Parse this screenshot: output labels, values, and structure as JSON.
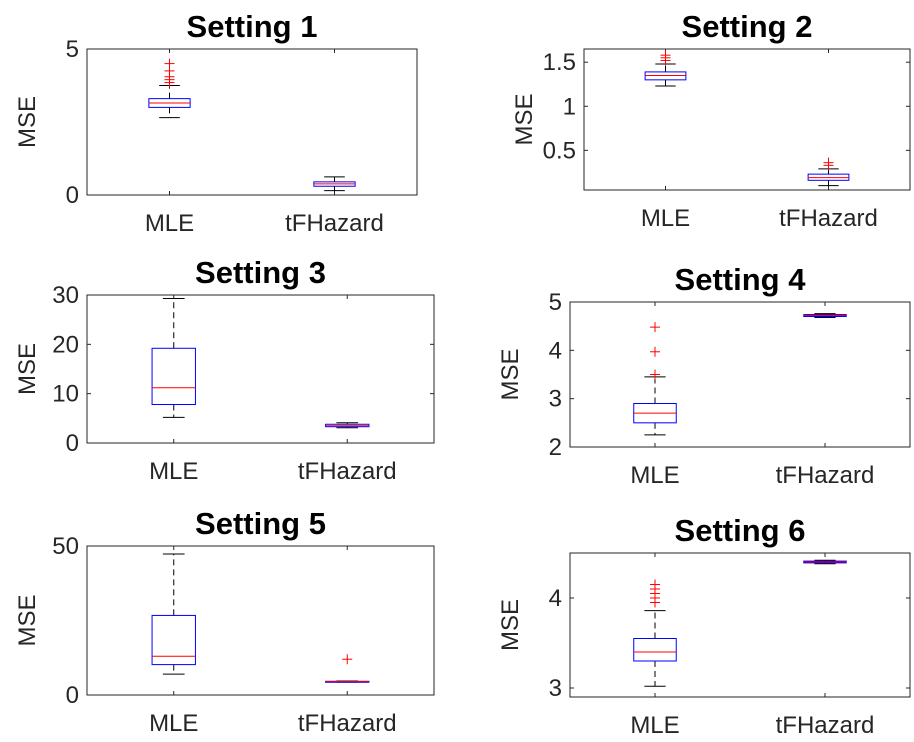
{
  "chart_data": [
    {
      "type": "box",
      "title": "Setting 1",
      "ylabel": "MSE",
      "categories": [
        "MLE",
        "tFHazard"
      ],
      "ylim": [
        0,
        5
      ],
      "yticks": [
        0,
        5
      ],
      "yticklabels": [
        "0",
        "5"
      ],
      "boxes": [
        {
          "category": "MLE",
          "whisker_low": 2.65,
          "q1": 3.0,
          "median": 3.15,
          "q3": 3.3,
          "whisker_high": 3.75,
          "outliers": [
            3.85,
            3.95,
            4.05,
            4.25,
            4.5
          ]
        },
        {
          "category": "tFHazard",
          "whisker_low": 0.15,
          "q1": 0.3,
          "median": 0.38,
          "q3": 0.45,
          "whisker_high": 0.62,
          "outliers": []
        }
      ]
    },
    {
      "type": "box",
      "title": "Setting 2",
      "ylabel": "MSE",
      "categories": [
        "MLE",
        "tFHazard"
      ],
      "ylim": [
        0.05,
        1.65
      ],
      "yticks": [
        0.5,
        1,
        1.5
      ],
      "yticklabels": [
        "0.5",
        "1",
        "1.5"
      ],
      "boxes": [
        {
          "category": "MLE",
          "whisker_low": 1.23,
          "q1": 1.3,
          "median": 1.35,
          "q3": 1.39,
          "whisker_high": 1.48,
          "outliers": [
            1.52,
            1.55,
            1.58
          ]
        },
        {
          "category": "tFHazard",
          "whisker_low": 0.1,
          "q1": 0.16,
          "median": 0.19,
          "q3": 0.23,
          "whisker_high": 0.29,
          "outliers": [
            0.33,
            0.36
          ]
        }
      ]
    },
    {
      "type": "box",
      "title": "Setting 3",
      "ylabel": "MSE",
      "categories": [
        "MLE",
        "tFHazard"
      ],
      "ylim": [
        0,
        30
      ],
      "yticks": [
        0,
        10,
        20,
        30
      ],
      "yticklabels": [
        "0",
        "10",
        "20",
        "30"
      ],
      "boxes": [
        {
          "category": "MLE",
          "whisker_low": 5.2,
          "q1": 7.8,
          "median": 11.2,
          "q3": 19.2,
          "whisker_high": 29.3,
          "outliers": []
        },
        {
          "category": "tFHazard",
          "whisker_low": 3.1,
          "q1": 3.3,
          "median": 3.5,
          "q3": 3.8,
          "whisker_high": 4.1,
          "outliers": []
        }
      ]
    },
    {
      "type": "box",
      "title": "Setting 4",
      "ylabel": "MSE",
      "categories": [
        "MLE",
        "tFHazard"
      ],
      "ylim": [
        2,
        5
      ],
      "yticks": [
        2,
        3,
        4,
        5
      ],
      "yticklabels": [
        "2",
        "3",
        "4",
        "5"
      ],
      "boxes": [
        {
          "category": "MLE",
          "whisker_low": 2.25,
          "q1": 2.5,
          "median": 2.7,
          "q3": 2.9,
          "whisker_high": 3.45,
          "outliers": [
            3.5,
            3.97,
            4.48
          ]
        },
        {
          "category": "tFHazard",
          "whisker_low": 4.68,
          "q1": 4.7,
          "median": 4.72,
          "q3": 4.74,
          "whisker_high": 4.76,
          "outliers": []
        }
      ]
    },
    {
      "type": "box",
      "title": "Setting 5",
      "ylabel": "MSE",
      "categories": [
        "MLE",
        "tFHazard"
      ],
      "ylim": [
        0,
        50
      ],
      "yticks": [
        0,
        50
      ],
      "yticklabels": [
        "0",
        "50"
      ],
      "boxes": [
        {
          "category": "MLE",
          "whisker_low": 7,
          "q1": 10.2,
          "median": 13,
          "q3": 26.7,
          "whisker_high": 47.3,
          "outliers": []
        },
        {
          "category": "tFHazard",
          "whisker_low": 4.3,
          "q1": 4.4,
          "median": 4.5,
          "q3": 4.6,
          "whisker_high": 4.7,
          "outliers": [
            12
          ]
        }
      ]
    },
    {
      "type": "box",
      "title": "Setting 6",
      "ylabel": "MSE",
      "categories": [
        "MLE",
        "tFHazard"
      ],
      "ylim": [
        2.9,
        4.5
      ],
      "yticks": [
        3,
        4
      ],
      "yticklabels": [
        "3",
        "4"
      ],
      "boxes": [
        {
          "category": "MLE",
          "whisker_low": 3.02,
          "q1": 3.3,
          "median": 3.4,
          "q3": 3.55,
          "whisker_high": 3.86,
          "outliers": [
            3.95,
            4.0,
            4.05,
            4.1,
            4.15
          ]
        },
        {
          "category": "tFHazard",
          "whisker_low": 4.38,
          "q1": 4.39,
          "median": 4.4,
          "q3": 4.41,
          "whisker_high": 4.42,
          "outliers": []
        }
      ]
    }
  ],
  "colors": {
    "box": "#0000ff",
    "median": "#ff0000",
    "outlier": "#ff0000",
    "whisker": "#000000",
    "axes": "#262626"
  }
}
